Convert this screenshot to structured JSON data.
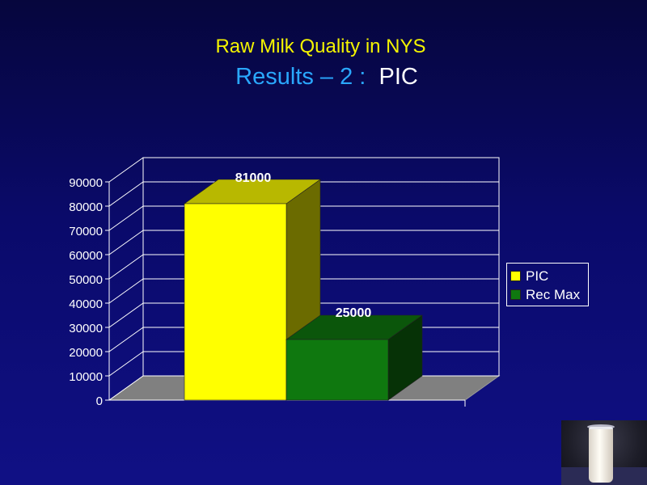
{
  "slide": {
    "title_line1": "Raw Milk Quality in NYS",
    "title_line2_part1": "Results – 2 :",
    "title_line2_part2": "PIC"
  },
  "chart_data": {
    "type": "bar",
    "style": "3d",
    "categories": [
      ""
    ],
    "series": [
      {
        "name": "PIC",
        "values": [
          81000
        ],
        "color": "#ffff00",
        "label": "81000"
      },
      {
        "name": "Rec Max",
        "values": [
          25000
        ],
        "color": "#0f780f",
        "label": "25000"
      }
    ],
    "ylim": [
      0,
      90000
    ],
    "yticks": [
      "0",
      "10000",
      "20000",
      "30000",
      "40000",
      "50000",
      "60000",
      "70000",
      "80000",
      "90000"
    ],
    "grid": true,
    "legend_position": "right"
  },
  "legend": {
    "items": [
      {
        "label": "PIC",
        "color": "#ffff00"
      },
      {
        "label": "Rec Max",
        "color": "#0f780f"
      }
    ]
  },
  "photo_icon": "milk-glass-photo"
}
